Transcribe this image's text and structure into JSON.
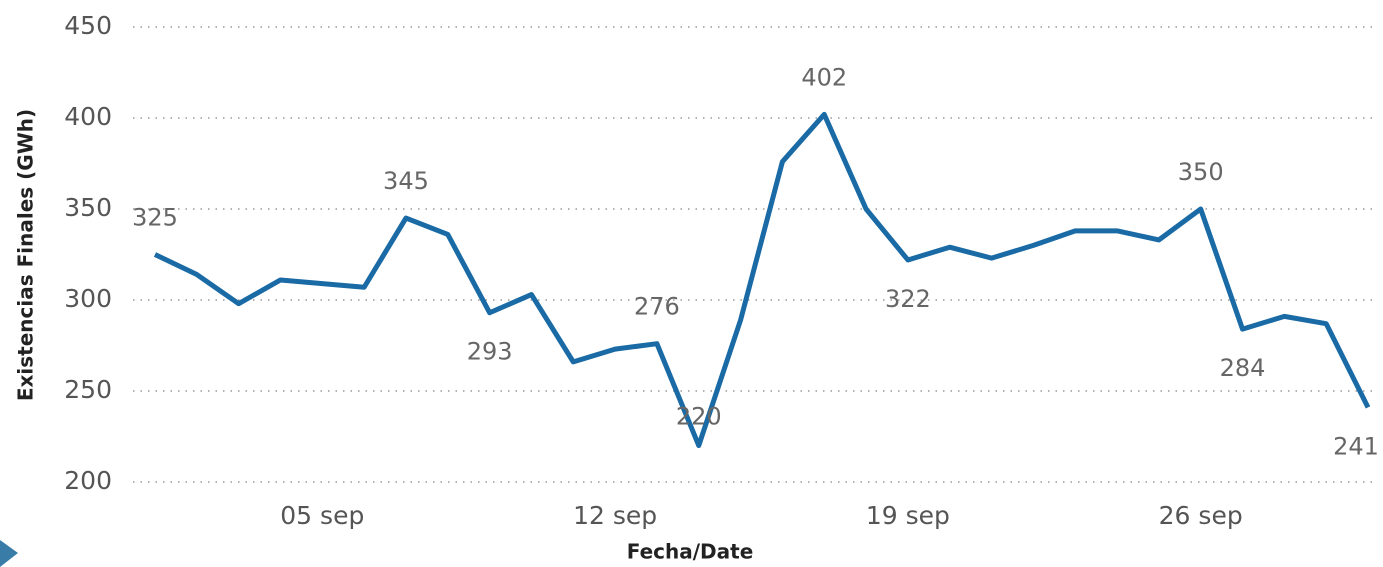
{
  "chart_data": {
    "type": "line",
    "ylabel": "Existencias Finales (GWh)",
    "xlabel": "Fecha/Date",
    "categories": [
      null,
      null,
      null,
      null,
      "05 sep",
      null,
      null,
      null,
      null,
      null,
      null,
      "12 sep",
      null,
      null,
      null,
      null,
      null,
      null,
      "19 sep",
      null,
      null,
      null,
      null,
      null,
      null,
      "26 sep",
      null,
      null,
      null,
      null
    ],
    "series": [
      {
        "name": "Existencias Finales",
        "color": "#1a6aa5",
        "values": [
          325,
          314,
          298,
          311,
          309,
          307,
          345,
          336,
          293,
          303,
          266,
          273,
          276,
          220,
          289,
          376,
          402,
          350,
          322,
          329,
          323,
          330,
          338,
          338,
          333,
          350,
          284,
          291,
          287,
          241
        ],
        "value_labels": [
          "325",
          null,
          null,
          null,
          null,
          null,
          "345",
          null,
          "293",
          null,
          null,
          null,
          "276",
          "220",
          null,
          null,
          "402",
          null,
          "322",
          null,
          null,
          null,
          null,
          null,
          null,
          "350",
          "284",
          null,
          null,
          "241"
        ]
      }
    ],
    "ylim": [
      200,
      450
    ],
    "yticks": [
      200,
      250,
      300,
      350,
      400,
      450
    ],
    "grid": true
  }
}
